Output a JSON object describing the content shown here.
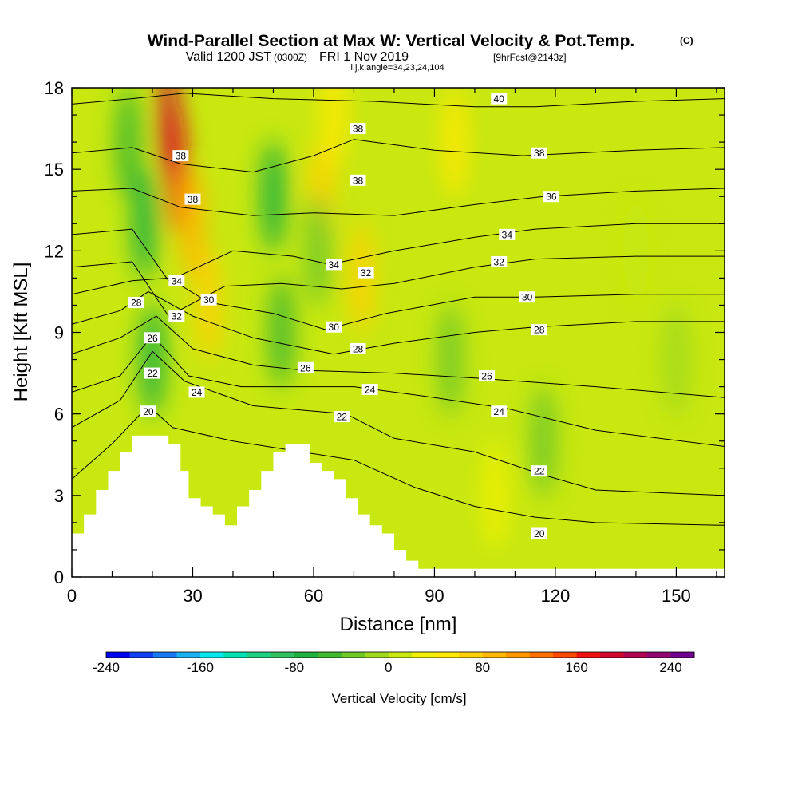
{
  "header": {
    "title_main": "Wind-Parallel Section at Max W: Vertical Velocity & Pot.Temp.",
    "title_mark": "(C)",
    "valid_prefix": "Valid 1200 JST",
    "valid_utc": "(0300Z)",
    "valid_date": "FRI 1 Nov 2019",
    "forecast": "[9hrFcst@2143z]",
    "indices": "i,j,k,angle=34,23,24,104"
  },
  "chart_data": {
    "type": "heatmap",
    "xlabel": "Distance [nm]",
    "ylabel": "Height [Kft MSL]",
    "xlim": [
      0,
      162
    ],
    "ylim": [
      0,
      18
    ],
    "x_ticks": [
      0,
      30,
      60,
      90,
      120,
      150
    ],
    "y_ticks": [
      0,
      3,
      6,
      9,
      12,
      15,
      18
    ],
    "colorbar": {
      "label": "Vertical Velocity [cm/s]",
      "min": -240,
      "max": 260,
      "step": 20,
      "tick_values": [
        -240,
        -160,
        -80,
        0,
        80,
        160,
        240
      ],
      "tick_labels": [
        "-240",
        "-160",
        "-80",
        "0",
        "80",
        "160",
        "240"
      ],
      "colors": [
        "#0000f0",
        "#1040f5",
        "#1a78f0",
        "#1ab0f0",
        "#00e8f0",
        "#00e0b0",
        "#20d080",
        "#30c060",
        "#20b040",
        "#40b830",
        "#70c828",
        "#a0d820",
        "#c8e810",
        "#f0f000",
        "#ffe800",
        "#ffd000",
        "#ffb800",
        "#ff9800",
        "#ff7000",
        "#ff4800",
        "#f01010",
        "#d00830",
        "#b00850",
        "#900870",
        "#700090"
      ]
    },
    "terrain": [
      [
        0,
        1.6
      ],
      [
        3,
        2.3
      ],
      [
        6,
        3.2
      ],
      [
        9,
        3.9
      ],
      [
        12,
        4.6
      ],
      [
        15,
        5.2
      ],
      [
        18,
        5.2
      ],
      [
        21,
        5.2
      ],
      [
        24,
        4.9
      ],
      [
        27,
        3.9
      ],
      [
        29,
        2.9
      ],
      [
        32,
        2.6
      ],
      [
        35,
        2.3
      ],
      [
        38,
        1.9
      ],
      [
        41,
        2.6
      ],
      [
        44,
        3.2
      ],
      [
        47,
        3.9
      ],
      [
        50,
        4.6
      ],
      [
        53,
        4.9
      ],
      [
        56,
        4.9
      ],
      [
        59,
        4.2
      ],
      [
        62,
        3.9
      ],
      [
        65,
        3.6
      ],
      [
        68,
        2.9
      ],
      [
        71,
        2.3
      ],
      [
        74,
        1.9
      ],
      [
        77,
        1.6
      ],
      [
        80,
        1.0
      ],
      [
        83,
        0.6
      ],
      [
        86,
        0.3
      ],
      [
        162,
        0.3
      ]
    ],
    "vv_features": [
      {
        "x": 26,
        "y": 15,
        "vv": 160
      },
      {
        "x": 24,
        "y": 17,
        "vv": 180
      },
      {
        "x": 34,
        "y": 10,
        "vv": 60
      },
      {
        "x": 30,
        "y": 13,
        "vv": 80
      },
      {
        "x": 62,
        "y": 14,
        "vv": 60
      },
      {
        "x": 65,
        "y": 17,
        "vv": 50
      },
      {
        "x": 72,
        "y": 11,
        "vv": 70
      },
      {
        "x": 95,
        "y": 16,
        "vv": 40
      },
      {
        "x": 20,
        "y": 8,
        "vv": -80
      },
      {
        "x": 18,
        "y": 13,
        "vv": -70
      },
      {
        "x": 14,
        "y": 16,
        "vv": -50
      },
      {
        "x": 50,
        "y": 14,
        "vv": -70
      },
      {
        "x": 52,
        "y": 9,
        "vv": -60
      },
      {
        "x": 61,
        "y": 12,
        "vv": -40
      },
      {
        "x": 94,
        "y": 8,
        "vv": -40
      },
      {
        "x": 117,
        "y": 5,
        "vv": -40
      },
      {
        "x": 105,
        "y": 3,
        "vv": 20
      },
      {
        "x": 140,
        "y": 12,
        "vv": 15
      },
      {
        "x": 150,
        "y": 8,
        "vv": -20
      }
    ],
    "theta_contours": [
      {
        "level": 20,
        "pts": [
          [
            0,
            3.6
          ],
          [
            10,
            4.9
          ],
          [
            19,
            6.3
          ],
          [
            25,
            5.5
          ],
          [
            40,
            5.0
          ],
          [
            70,
            4.3
          ],
          [
            85,
            3.3
          ],
          [
            100,
            2.6
          ],
          [
            115,
            2.2
          ],
          [
            130,
            2.0
          ],
          [
            162,
            1.9
          ]
        ]
      },
      {
        "level": 22,
        "pts": [
          [
            0,
            5.5
          ],
          [
            12,
            6.5
          ],
          [
            20,
            8.3
          ],
          [
            28,
            7.2
          ],
          [
            45,
            6.3
          ],
          [
            68,
            6.0
          ],
          [
            80,
            5.1
          ],
          [
            100,
            4.6
          ],
          [
            116,
            3.8
          ],
          [
            130,
            3.2
          ],
          [
            162,
            3.0
          ]
        ]
      },
      {
        "level": 24,
        "pts": [
          [
            0,
            6.8
          ],
          [
            12,
            7.4
          ],
          [
            20,
            8.9
          ],
          [
            29,
            7.4
          ],
          [
            42,
            7.0
          ],
          [
            70,
            7.0
          ],
          [
            90,
            6.6
          ],
          [
            108,
            6.2
          ],
          [
            130,
            5.4
          ],
          [
            162,
            4.8
          ]
        ]
      },
      {
        "level": 26,
        "pts": [
          [
            0,
            8.2
          ],
          [
            12,
            8.8
          ],
          [
            21,
            9.6
          ],
          [
            30,
            8.4
          ],
          [
            45,
            7.8
          ],
          [
            58,
            7.6
          ],
          [
            80,
            7.5
          ],
          [
            102,
            7.3
          ],
          [
            130,
            7.0
          ],
          [
            162,
            6.6
          ]
        ]
      },
      {
        "level": 28,
        "pts": [
          [
            0,
            9.3
          ],
          [
            12,
            9.8
          ],
          [
            19,
            10.5
          ],
          [
            30,
            9.6
          ],
          [
            45,
            8.8
          ],
          [
            65,
            8.2
          ],
          [
            80,
            8.6
          ],
          [
            100,
            9.0
          ],
          [
            115,
            9.2
          ],
          [
            140,
            9.4
          ],
          [
            162,
            9.4
          ]
        ]
      },
      {
        "level": 30,
        "pts": [
          [
            0,
            10.4
          ],
          [
            15,
            10.9
          ],
          [
            24,
            11.0
          ],
          [
            34,
            10.1
          ],
          [
            50,
            9.7
          ],
          [
            63,
            9.1
          ],
          [
            78,
            9.7
          ],
          [
            100,
            10.3
          ],
          [
            115,
            10.3
          ],
          [
            140,
            10.4
          ],
          [
            162,
            10.4
          ]
        ]
      },
      {
        "level": 32,
        "pts": [
          [
            0,
            11.4
          ],
          [
            15,
            11.6
          ],
          [
            24,
            9.6
          ],
          [
            38,
            10.7
          ],
          [
            52,
            10.8
          ],
          [
            67,
            10.6
          ],
          [
            80,
            10.8
          ],
          [
            100,
            11.4
          ],
          [
            115,
            11.7
          ],
          [
            140,
            11.8
          ],
          [
            162,
            11.8
          ]
        ]
      },
      {
        "level": 34,
        "pts": [
          [
            0,
            12.6
          ],
          [
            15,
            12.8
          ],
          [
            24,
            10.9
          ],
          [
            40,
            12.0
          ],
          [
            55,
            11.8
          ],
          [
            64,
            11.5
          ],
          [
            80,
            12.0
          ],
          [
            100,
            12.5
          ],
          [
            115,
            12.8
          ],
          [
            140,
            13.0
          ],
          [
            162,
            13.0
          ]
        ]
      },
      {
        "level": 36,
        "pts": [
          [
            0,
            14.2
          ],
          [
            15,
            14.3
          ],
          [
            27,
            13.6
          ],
          [
            45,
            13.3
          ],
          [
            60,
            13.4
          ],
          [
            80,
            13.3
          ],
          [
            100,
            13.7
          ],
          [
            117,
            14.0
          ],
          [
            140,
            14.2
          ],
          [
            162,
            14.3
          ]
        ]
      },
      {
        "level": 38,
        "pts": [
          [
            0,
            15.6
          ],
          [
            15,
            15.8
          ],
          [
            27,
            15.2
          ],
          [
            45,
            14.9
          ],
          [
            60,
            15.5
          ],
          [
            70,
            16.1
          ],
          [
            90,
            15.7
          ],
          [
            112,
            15.5
          ],
          [
            140,
            15.7
          ],
          [
            162,
            15.8
          ]
        ]
      },
      {
        "level": 40,
        "pts": [
          [
            0,
            17.4
          ],
          [
            15,
            17.6
          ],
          [
            28,
            17.8
          ],
          [
            50,
            17.6
          ],
          [
            75,
            17.5
          ],
          [
            100,
            17.3
          ],
          [
            115,
            17.3
          ],
          [
            140,
            17.5
          ],
          [
            162,
            17.6
          ]
        ]
      }
    ],
    "contour_labels": [
      {
        "text": "38",
        "x": 27,
        "y": 15.5
      },
      {
        "text": "38",
        "x": 30,
        "y": 13.9
      },
      {
        "text": "34",
        "x": 26,
        "y": 10.9
      },
      {
        "text": "32",
        "x": 26,
        "y": 9.6
      },
      {
        "text": "30",
        "x": 34,
        "y": 10.2
      },
      {
        "text": "28",
        "x": 16,
        "y": 10.1
      },
      {
        "text": "26",
        "x": 20,
        "y": 8.8
      },
      {
        "text": "22",
        "x": 20,
        "y": 7.5
      },
      {
        "text": "20",
        "x": 19,
        "y": 6.1
      },
      {
        "text": "24",
        "x": 31,
        "y": 6.8
      },
      {
        "text": "38",
        "x": 71,
        "y": 16.5
      },
      {
        "text": "38",
        "x": 71,
        "y": 14.6
      },
      {
        "text": "34",
        "x": 65,
        "y": 11.5
      },
      {
        "text": "32",
        "x": 73,
        "y": 11.2
      },
      {
        "text": "30",
        "x": 65,
        "y": 9.2
      },
      {
        "text": "28",
        "x": 71,
        "y": 8.4
      },
      {
        "text": "26",
        "x": 58,
        "y": 7.7
      },
      {
        "text": "24",
        "x": 74,
        "y": 6.9
      },
      {
        "text": "22",
        "x": 67,
        "y": 5.9
      },
      {
        "text": "40",
        "x": 106,
        "y": 17.6
      },
      {
        "text": "38",
        "x": 116,
        "y": 15.6
      },
      {
        "text": "36",
        "x": 119,
        "y": 14.0
      },
      {
        "text": "34",
        "x": 108,
        "y": 12.6
      },
      {
        "text": "32",
        "x": 106,
        "y": 11.6
      },
      {
        "text": "30",
        "x": 113,
        "y": 10.3
      },
      {
        "text": "28",
        "x": 116,
        "y": 9.1
      },
      {
        "text": "26",
        "x": 103,
        "y": 7.4
      },
      {
        "text": "24",
        "x": 106,
        "y": 6.1
      },
      {
        "text": "22",
        "x": 116,
        "y": 3.9
      },
      {
        "text": "20",
        "x": 116,
        "y": 1.6
      }
    ]
  }
}
